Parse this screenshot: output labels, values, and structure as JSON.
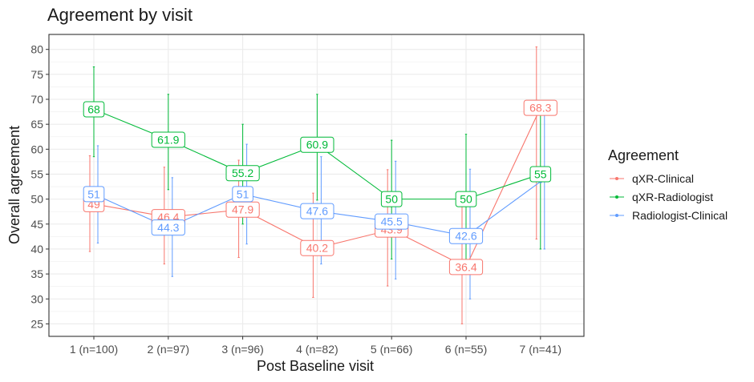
{
  "chart_data": {
    "type": "line",
    "title": "Agreement by visit",
    "xlabel": "Post Baseline visit",
    "ylabel": "Overall agreement",
    "categories": [
      "1 (n=100)",
      "2 (n=97)",
      "3 (n=96)",
      "4 (n=82)",
      "5 (n=66)",
      "6 (n=55)",
      "7 (n=41)"
    ],
    "yticks": [
      25,
      30,
      35,
      40,
      45,
      50,
      55,
      60,
      65,
      70,
      75,
      80
    ],
    "ylim": [
      22.5,
      83
    ],
    "grid": true,
    "legend": {
      "title": "Agreement",
      "position": "right"
    },
    "series": [
      {
        "name": "qXR-Clinical",
        "color": "#F8766D",
        "values": [
          49,
          46.4,
          47.9,
          40.2,
          43.9,
          36.4,
          68.3
        ],
        "lower": [
          39.5,
          37,
          38.3,
          30.3,
          32.6,
          25,
          42
        ],
        "upper": [
          58.7,
          56.4,
          57.8,
          51.2,
          55.9,
          48.5,
          80.5
        ]
      },
      {
        "name": "qXR-Radiologist",
        "color": "#00BA38",
        "values": [
          68,
          61.9,
          55.2,
          60.9,
          50,
          50,
          55
        ],
        "lower": [
          58.5,
          51.9,
          45,
          49.8,
          38,
          36.8,
          40
        ],
        "upper": [
          76.5,
          71,
          65,
          71,
          61.8,
          63,
          69
        ]
      },
      {
        "name": "Radiologist-Clinical",
        "color": "#619CFF",
        "values": [
          51,
          44.3,
          51,
          47.6,
          45.5,
          42.6,
          53.5
        ],
        "lower": [
          41.2,
          34.5,
          41,
          37,
          34,
          30,
          40
        ],
        "upper": [
          60.7,
          54.3,
          61,
          58.5,
          57.6,
          56,
          67
        ]
      }
    ],
    "data_labels": [
      {
        "series": 0,
        "labels": [
          "49",
          "46.4",
          "47.9",
          "40.2",
          "43.9",
          "36.4",
          "68.3"
        ]
      },
      {
        "series": 1,
        "labels": [
          "68",
          "61.9",
          "55.2",
          "60.9",
          "50",
          "50",
          "55"
        ]
      },
      {
        "series": 2,
        "labels": [
          "51",
          "44.3",
          "51",
          "47.6",
          "45.5",
          "42.6",
          ""
        ]
      }
    ]
  }
}
